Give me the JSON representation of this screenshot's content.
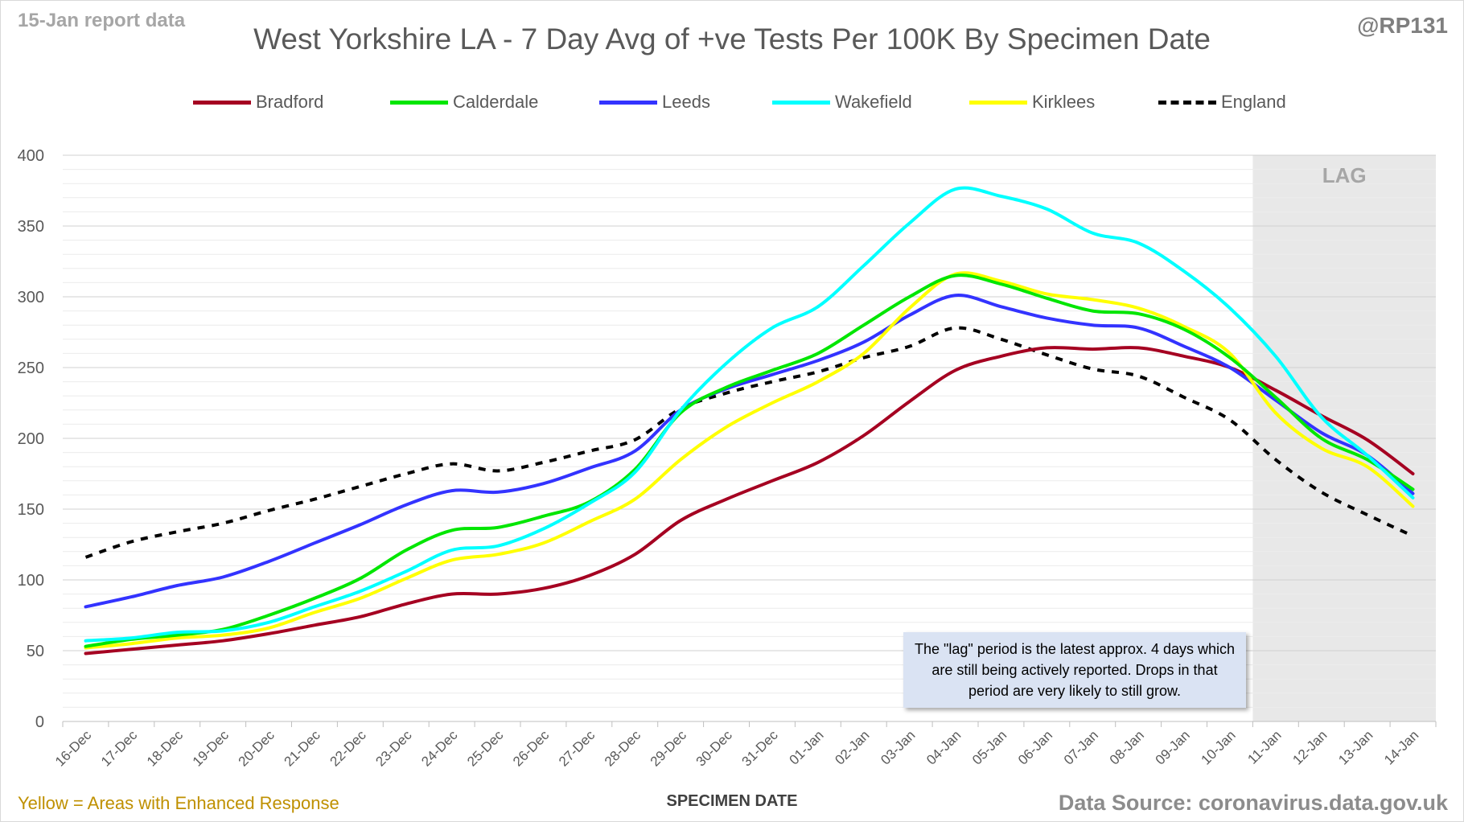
{
  "report_label": "15-Jan report data",
  "handle": "@RP131",
  "enhanced_note": "Yellow = Areas with Enhanced Response",
  "data_source": "Data Source: coronavirus.data.gov.uk",
  "lag_label": "LAG",
  "lag_note": "The \"lag\" period is the latest approx. 4 days which are still being actively reported. Drops in that period are very likely to still grow.",
  "colors": {
    "Bradford": "#a50021",
    "Calderdale": "#00e600",
    "Leeds": "#3333ff",
    "Wakefield": "#00ffff",
    "Kirklees": "#ffff00",
    "England": "#000000",
    "lag_shade": "#e8e8e8",
    "grid": "#d9d9d9"
  },
  "chart_data": {
    "type": "line",
    "title": "West Yorkshire LA - 7 Day Avg of +ve Tests Per 100K By Specimen Date",
    "xlabel": "SPECIMEN DATE",
    "ylabel": "",
    "ylim": [
      0,
      400
    ],
    "yticks": [
      0,
      50,
      100,
      150,
      200,
      250,
      300,
      350,
      400
    ],
    "grid": true,
    "legend_position": "top",
    "lag_period": [
      "11-Jan",
      "14-Jan"
    ],
    "categories": [
      "16-Dec",
      "17-Dec",
      "18-Dec",
      "19-Dec",
      "20-Dec",
      "21-Dec",
      "22-Dec",
      "23-Dec",
      "24-Dec",
      "25-Dec",
      "26-Dec",
      "27-Dec",
      "28-Dec",
      "29-Dec",
      "30-Dec",
      "31-Dec",
      "01-Jan",
      "02-Jan",
      "03-Jan",
      "04-Jan",
      "05-Jan",
      "06-Jan",
      "07-Jan",
      "08-Jan",
      "09-Jan",
      "10-Jan",
      "11-Jan",
      "12-Jan",
      "13-Jan",
      "14-Jan"
    ],
    "series": [
      {
        "name": "Bradford",
        "dashed": false,
        "values": [
          48,
          51,
          54,
          57,
          62,
          68,
          74,
          83,
          90,
          90,
          94,
          103,
          118,
          142,
          157,
          170,
          183,
          202,
          226,
          248,
          258,
          264,
          263,
          264,
          258,
          250,
          234,
          216,
          199,
          175
        ]
      },
      {
        "name": "Calderdale",
        "dashed": false,
        "values": [
          53,
          58,
          61,
          65,
          75,
          87,
          101,
          121,
          135,
          137,
          145,
          155,
          178,
          218,
          236,
          248,
          260,
          280,
          300,
          315,
          309,
          299,
          290,
          288,
          277,
          257,
          229,
          200,
          185,
          164
        ]
      },
      {
        "name": "Leeds",
        "dashed": false,
        "values": [
          81,
          88,
          96,
          102,
          113,
          126,
          139,
          153,
          163,
          162,
          168,
          179,
          191,
          220,
          235,
          245,
          255,
          268,
          287,
          301,
          293,
          285,
          280,
          278,
          265,
          250,
          227,
          204,
          188,
          161
        ]
      },
      {
        "name": "Wakefield",
        "dashed": false,
        "values": [
          57,
          59,
          63,
          64,
          70,
          81,
          92,
          106,
          121,
          124,
          136,
          154,
          176,
          220,
          253,
          278,
          293,
          322,
          352,
          376,
          371,
          362,
          345,
          338,
          318,
          292,
          258,
          215,
          188,
          158
        ]
      },
      {
        "name": "Kirklees",
        "dashed": false,
        "values": [
          52,
          55,
          59,
          61,
          66,
          77,
          87,
          101,
          114,
          118,
          126,
          141,
          157,
          185,
          208,
          225,
          240,
          260,
          292,
          316,
          311,
          302,
          298,
          292,
          279,
          260,
          218,
          193,
          180,
          152
        ]
      },
      {
        "name": "England",
        "dashed": true,
        "values": [
          116,
          127,
          134,
          140,
          149,
          157,
          166,
          175,
          182,
          177,
          183,
          191,
          199,
          221,
          232,
          240,
          247,
          257,
          265,
          278,
          270,
          259,
          249,
          244,
          229,
          213,
          185,
          162,
          146,
          131
        ]
      }
    ]
  }
}
